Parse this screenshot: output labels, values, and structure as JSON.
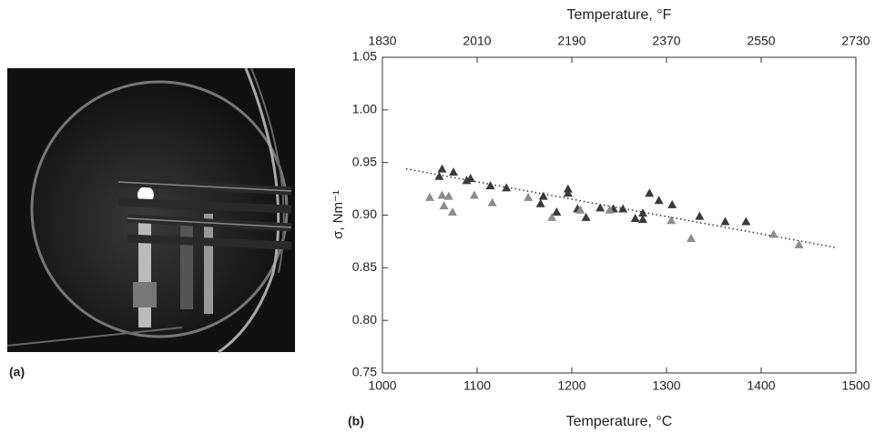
{
  "panels": {
    "a": "(a)",
    "b": "(b)"
  },
  "chart_data": {
    "type": "scatter",
    "xlabel": "Temperature, °C",
    "x2label": "Temperature, °F",
    "ylabel": "σ, Nm⁻¹",
    "xlim": [
      1000,
      1500
    ],
    "xticks": [
      1000,
      1100,
      1200,
      1300,
      1400,
      1500
    ],
    "x2lim": [
      1830,
      2730
    ],
    "x2ticks": [
      1830,
      2010,
      2190,
      2370,
      2550,
      2730
    ],
    "ylim": [
      0.75,
      1.05
    ],
    "yticks": [
      0.75,
      {
        "value": 0.8,
        "label": "0.80"
      },
      0.85,
      {
        "value": 0.9,
        "label": "0.90"
      },
      0.95,
      {
        "value": 1,
        "label": "1.00"
      },
      1.05
    ],
    "series": [
      {
        "color": "#3a3a3a",
        "x": [
          1063,
          1075,
          1060,
          1093,
          1089,
          1114,
          1131,
          1170,
          1196,
          1196,
          1167,
          1184,
          1206,
          1215,
          1230,
          1244,
          1254,
          1275,
          1267,
          1275,
          1282,
          1292,
          1306,
          1335,
          1362,
          1384
        ],
        "values": [
          0.944,
          0.941,
          0.937,
          0.935,
          0.933,
          0.928,
          0.926,
          0.918,
          0.925,
          0.921,
          0.911,
          0.903,
          0.906,
          0.898,
          0.907,
          0.906,
          0.906,
          0.902,
          0.897,
          0.896,
          0.921,
          0.914,
          0.91,
          0.899,
          0.894,
          0.894
        ]
      },
      {
        "color": "#8c8c8c",
        "x": [
          1050,
          1063,
          1070,
          1065,
          1074,
          1097,
          1116,
          1154,
          1209,
          1179,
          1240,
          1305,
          1326,
          1413,
          1440
        ],
        "values": [
          0.917,
          0.919,
          0.918,
          0.909,
          0.903,
          0.919,
          0.912,
          0.917,
          0.905,
          0.898,
          0.905,
          0.895,
          0.878,
          0.882,
          0.872
        ]
      }
    ],
    "trend": {
      "x": [
        1025,
        1480
      ],
      "y": [
        0.944,
        0.869
      ]
    }
  }
}
